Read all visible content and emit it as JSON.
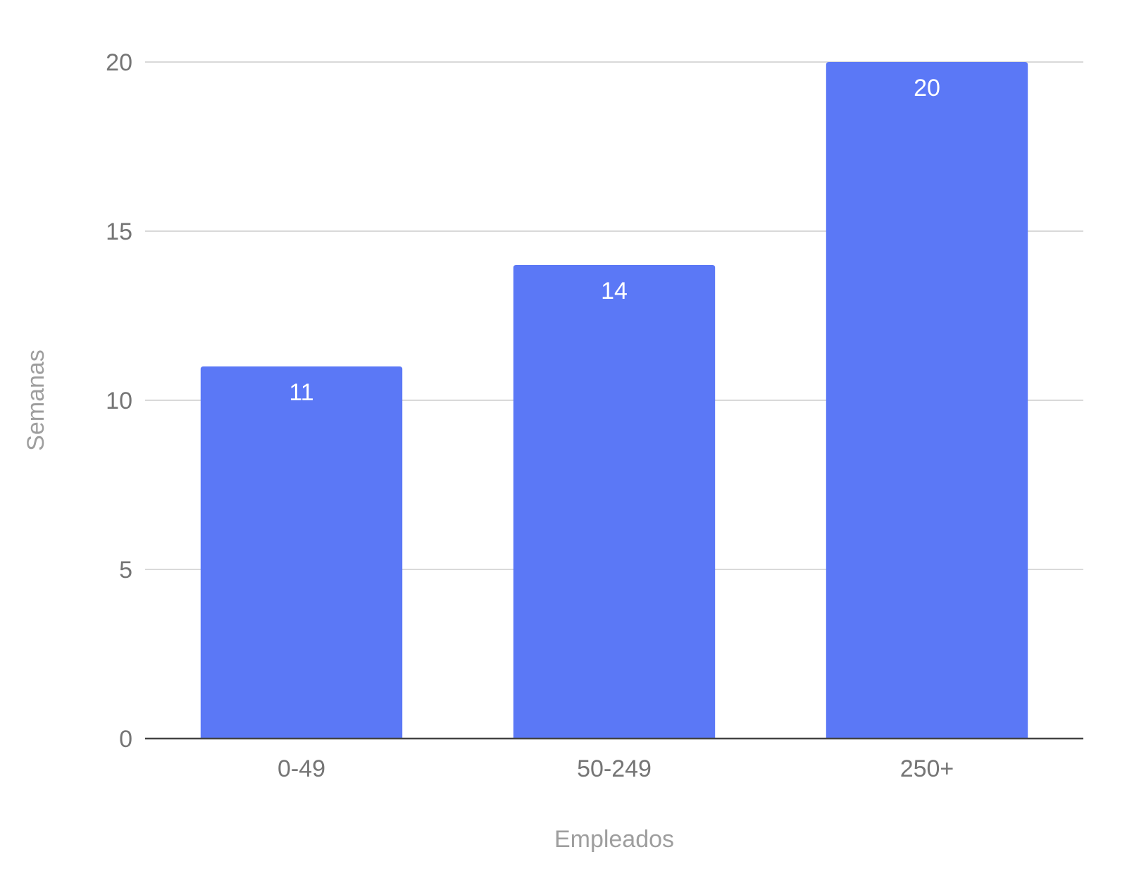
{
  "chart_data": {
    "type": "bar",
    "categories": [
      "0-49",
      "50-249",
      "250+"
    ],
    "series": [
      {
        "values": [
          11,
          14,
          20
        ],
        "color": "#5b78f6"
      }
    ],
    "data_labels": [
      "11",
      "14",
      "20"
    ],
    "xlabel": "Empleados",
    "ylabel": "Semanas",
    "ylim": [
      0,
      20
    ],
    "yticks": [
      "0",
      "5",
      "10",
      "15",
      "20"
    ],
    "ytick_values": [
      0,
      5,
      10,
      15,
      20
    ],
    "grid": true,
    "legend": "none"
  }
}
